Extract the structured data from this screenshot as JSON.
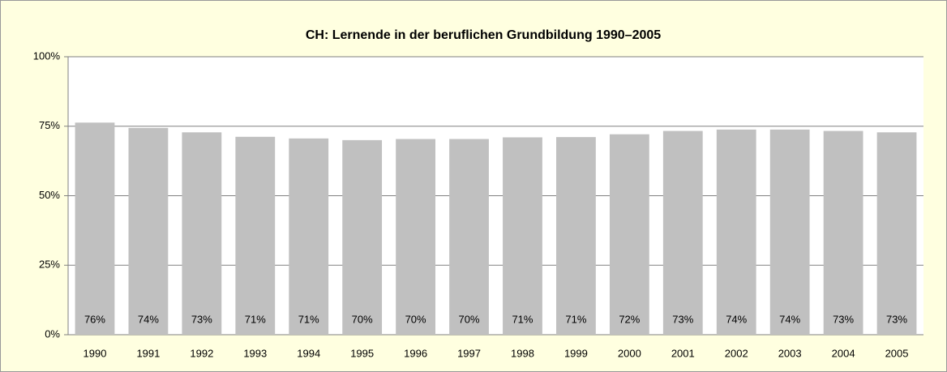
{
  "chart_data": {
    "type": "bar",
    "title": "CH: Lernende in der beruflichen Grundbildung 1990–2005",
    "categories": [
      "1990",
      "1991",
      "1992",
      "1993",
      "1994",
      "1995",
      "1996",
      "1997",
      "1998",
      "1999",
      "2000",
      "2001",
      "2002",
      "2003",
      "2004",
      "2005"
    ],
    "values": [
      76.3,
      74.4,
      72.8,
      71.2,
      70.6,
      70.0,
      70.4,
      70.4,
      71.0,
      71.1,
      72.1,
      73.3,
      73.8,
      73.8,
      73.3,
      72.8
    ],
    "value_labels": [
      "76%",
      "74%",
      "73%",
      "71%",
      "71%",
      "70%",
      "70%",
      "70%",
      "71%",
      "71%",
      "72%",
      "73%",
      "74%",
      "74%",
      "73%",
      "73%"
    ],
    "color": "#c0c0c0",
    "ylim": [
      0,
      100
    ],
    "yticks": [
      {
        "value": 0,
        "label": "0%"
      },
      {
        "value": 25,
        "label": "25%"
      },
      {
        "value": 50,
        "label": "50%"
      },
      {
        "value": 75,
        "label": "75%"
      },
      {
        "value": 100,
        "label": "100%"
      }
    ],
    "grid": true
  }
}
